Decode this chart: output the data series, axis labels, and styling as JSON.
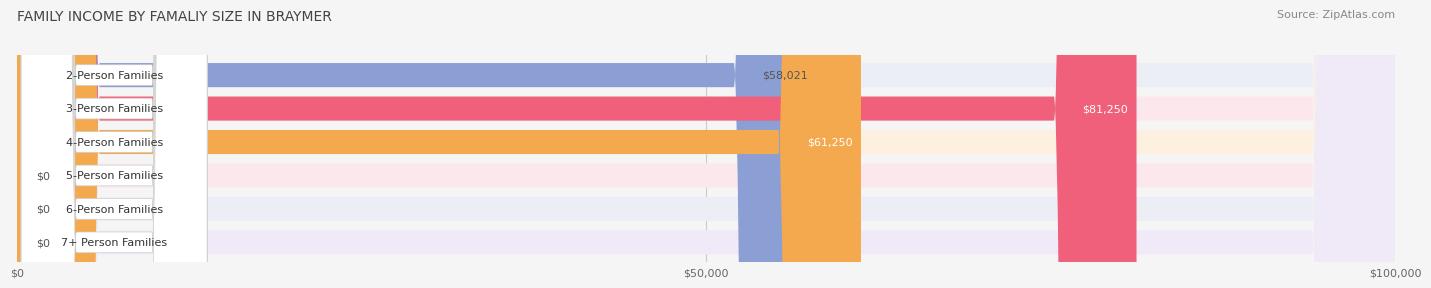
{
  "title": "FAMILY INCOME BY FAMALIY SIZE IN BRAYMER",
  "source": "Source: ZipAtlas.com",
  "categories": [
    "2-Person Families",
    "3-Person Families",
    "4-Person Families",
    "5-Person Families",
    "6-Person Families",
    "7+ Person Families"
  ],
  "values": [
    58021,
    81250,
    61250,
    0,
    0,
    0
  ],
  "bar_colors": [
    "#8b9fd4",
    "#f0607a",
    "#f5a94e",
    "#f0a0a8",
    "#a8bcd8",
    "#c0aed8"
  ],
  "label_colors": [
    "#555555",
    "#ffffff",
    "#ffffff",
    "#555555",
    "#555555",
    "#555555"
  ],
  "bg_colors": [
    "#eceef5",
    "#fce8ec",
    "#fdf0e0",
    "#fce8ec",
    "#eceef5",
    "#f0eaf8"
  ],
  "xmax": 100000,
  "xticks": [
    0,
    50000,
    100000
  ],
  "xtick_labels": [
    "$0",
    "$50,000",
    "$100,000"
  ],
  "background_color": "#f5f5f5",
  "title_fontsize": 10,
  "source_fontsize": 8,
  "label_fontsize": 8,
  "value_fontsize": 8
}
